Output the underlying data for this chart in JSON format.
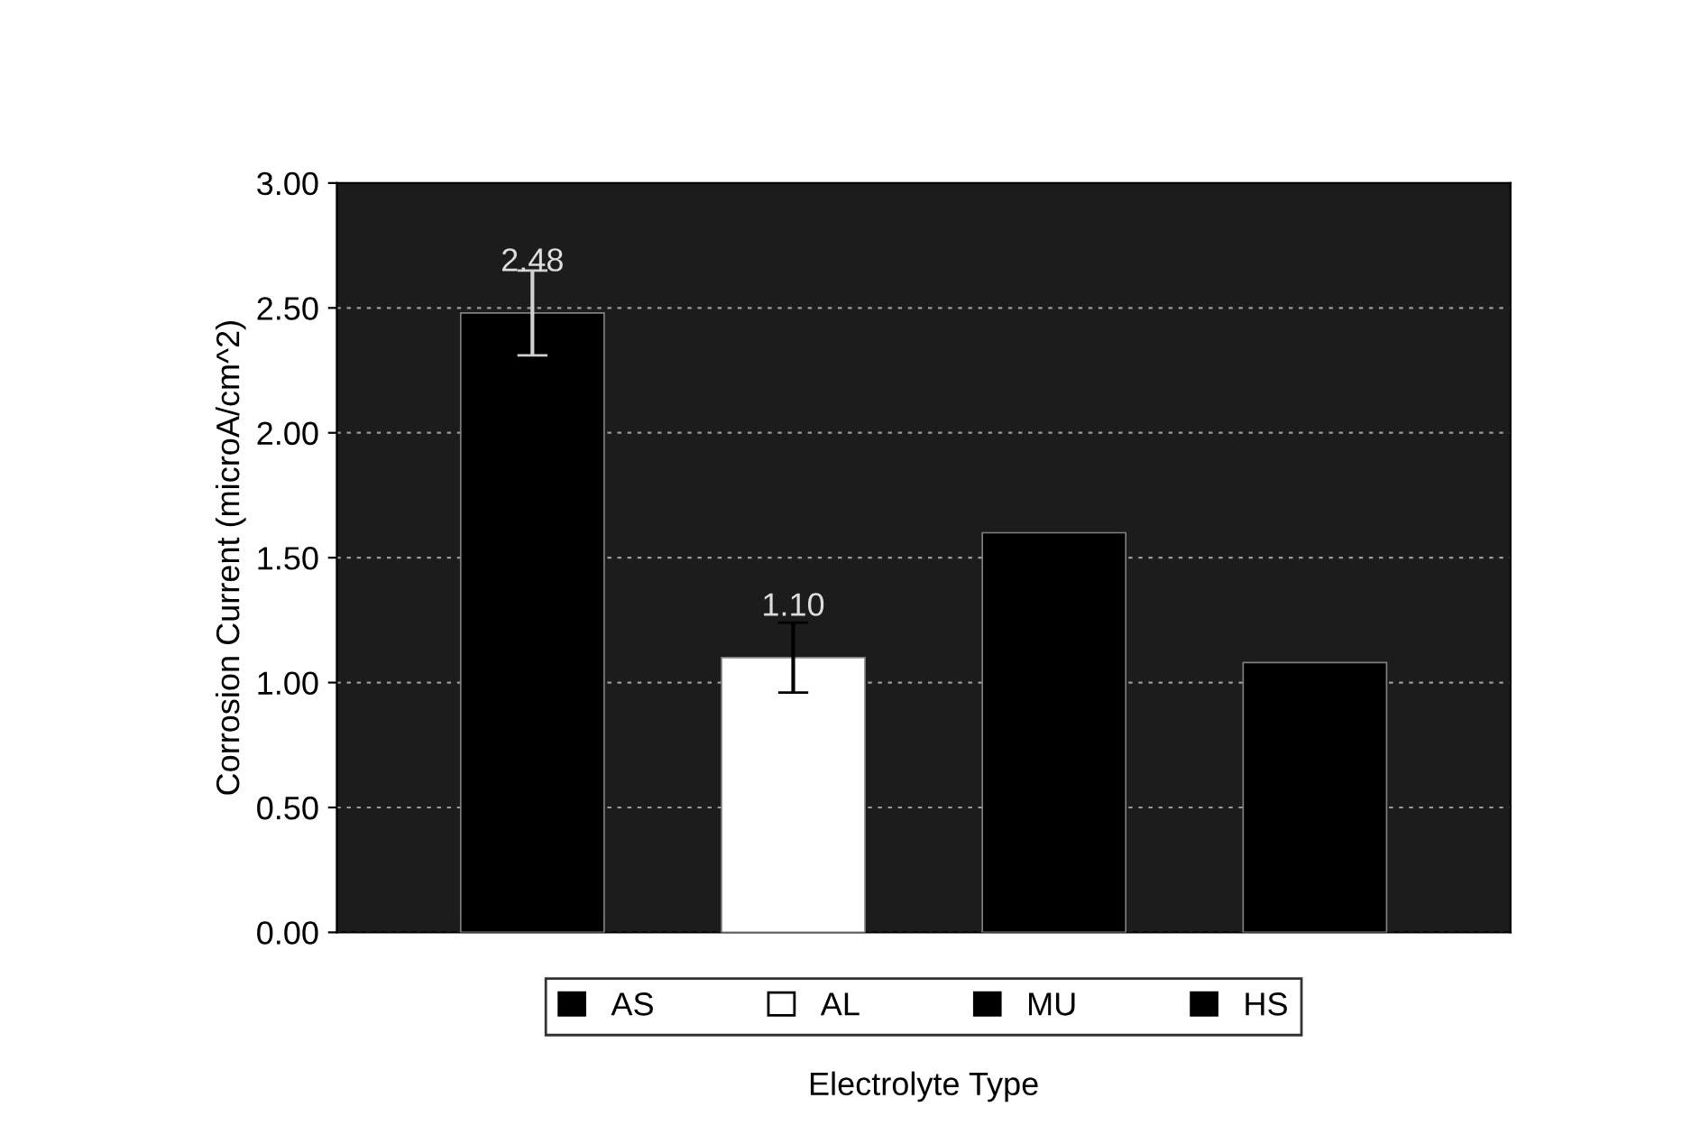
{
  "chart_data": {
    "type": "bar",
    "xlabel": "Electrolyte Type",
    "ylabel": "Corrosion Current (microA/cm^2)",
    "categories": [
      null
    ],
    "series": [
      {
        "name": "AS",
        "color": "#000000",
        "values": [
          2.48
        ],
        "errors": [
          0.17
        ],
        "value_labels": [
          "2.48"
        ]
      },
      {
        "name": "AL",
        "color": "#ffffff",
        "values": [
          1.1
        ],
        "errors": [
          0.14
        ],
        "value_labels": [
          "1.10"
        ]
      },
      {
        "name": "MU",
        "color": "#000000",
        "values": [
          1.6
        ],
        "errors": [
          null
        ],
        "value_labels": [
          null
        ]
      },
      {
        "name": "HS",
        "color": "#000000",
        "values": [
          1.08
        ],
        "errors": [
          null
        ],
        "value_labels": [
          null
        ]
      }
    ],
    "ylim": [
      0,
      3
    ],
    "yticks": [
      {
        "value": 0,
        "label": "0.00"
      },
      {
        "value": 0.5,
        "label": "0.50"
      },
      {
        "value": 1,
        "label": "1.00"
      },
      {
        "value": 1.5,
        "label": "1.50"
      },
      {
        "value": 2,
        "label": "2.00"
      },
      {
        "value": 2.5,
        "label": "2.50"
      },
      {
        "value": 3,
        "label": "3.00"
      }
    ],
    "grid": "y",
    "legend": "bottom"
  }
}
